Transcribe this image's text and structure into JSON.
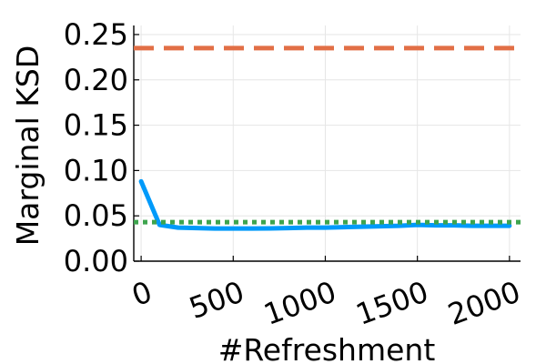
{
  "chart_data": {
    "type": "line",
    "xlabel": "#Refreshment",
    "ylabel": "Marginal KSD",
    "xlim": [
      -40,
      2060
    ],
    "ylim": [
      0,
      0.26
    ],
    "xticks": [
      0,
      500,
      1000,
      1500,
      2000
    ],
    "xtick_labels": [
      "0",
      "500",
      "1000",
      "1500",
      "2000"
    ],
    "yticks": [
      0.0,
      0.05,
      0.1,
      0.15,
      0.2,
      0.25
    ],
    "ytick_labels": [
      "0.00",
      "0.05",
      "0.10",
      "0.15",
      "0.20",
      "0.25"
    ],
    "grid": true,
    "legend": "none",
    "series": [
      {
        "style": "solid",
        "color": "#009AFA",
        "x": [
          0,
          100,
          200,
          300,
          400,
          500,
          600,
          700,
          800,
          900,
          1000,
          1100,
          1200,
          1300,
          1400,
          1500,
          1600,
          1700,
          1800,
          1900,
          2000
        ],
        "y": [
          0.088,
          0.04,
          0.037,
          0.0365,
          0.036,
          0.036,
          0.036,
          0.0362,
          0.0365,
          0.037,
          0.037,
          0.0375,
          0.038,
          0.0385,
          0.039,
          0.04,
          0.0395,
          0.0395,
          0.039,
          0.039,
          0.039
        ]
      },
      {
        "style": "dashed",
        "color": "#E26F46",
        "x": [
          -40,
          2060
        ],
        "y": [
          0.235,
          0.235
        ]
      },
      {
        "style": "dotted",
        "color": "#3EA44E",
        "x": [
          -40,
          2060
        ],
        "y": [
          0.043,
          0.043
        ]
      }
    ]
  }
}
